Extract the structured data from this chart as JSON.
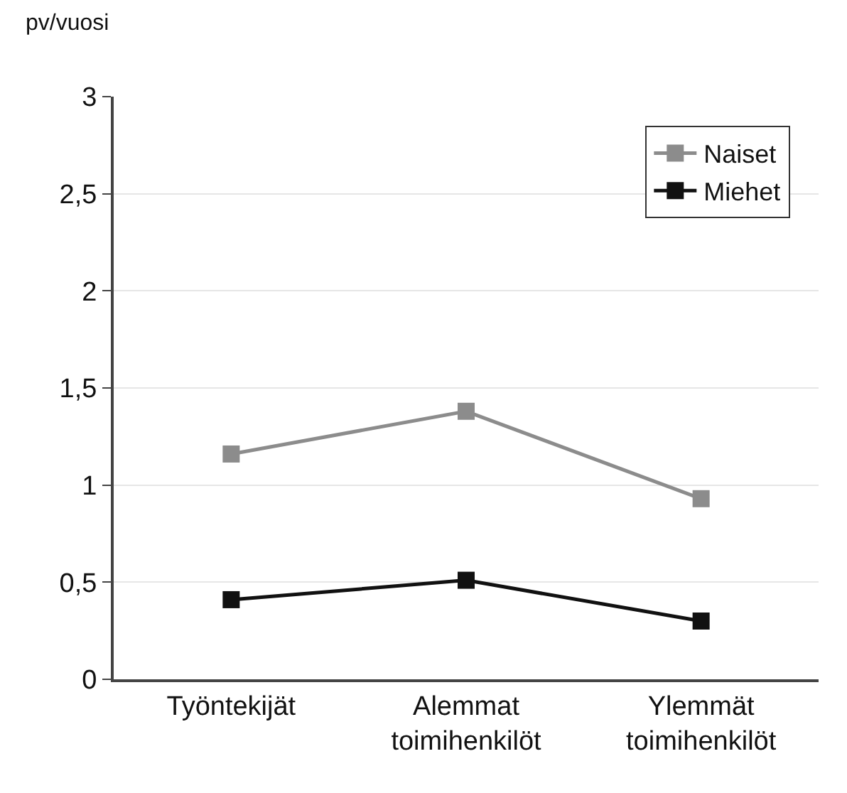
{
  "chart_data": {
    "type": "line",
    "ylabel": "pv/vuosi",
    "categories": [
      "Työntekijät",
      "Alemmat\ntoimihenkilöt",
      "Ylemmät\ntoimihenkilöt"
    ],
    "series": [
      {
        "name": "Naiset",
        "color": "#8c8c8c",
        "values": [
          1.16,
          1.38,
          0.93
        ]
      },
      {
        "name": "Miehet",
        "color": "#111111",
        "values": [
          0.41,
          0.51,
          0.3
        ]
      }
    ],
    "ylim": [
      0,
      3
    ],
    "yticks": [
      0,
      {
        "value": 0.5,
        "label": "0,5"
      },
      1,
      {
        "value": 1.5,
        "label": "1,5"
      },
      2,
      {
        "value": 2.5,
        "label": "2,5"
      },
      3
    ],
    "grid": "y",
    "legend": "top right",
    "marker": "square",
    "line_style": "solid"
  }
}
